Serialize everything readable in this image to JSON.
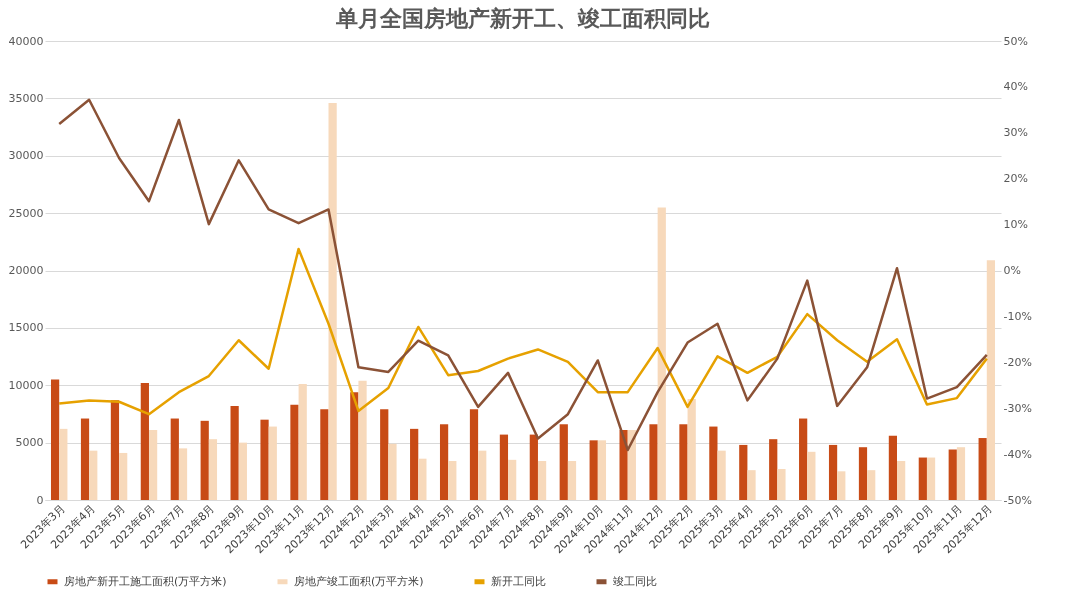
{
  "chart_data": {
    "type": "bar",
    "title": "单月全国房地产新开工、竣工面积同比",
    "categories": [
      "2023年3月",
      "2023年4月",
      "2023年5月",
      "2023年6月",
      "2023年7月",
      "2023年8月",
      "2023年9月",
      "2023年10月",
      "2023年11月",
      "2023年12月",
      "2024年2月",
      "2024年3月",
      "2024年4月",
      "2024年5月",
      "2024年6月",
      "2024年7月",
      "2024年8月",
      "2024年9月",
      "2024年10月",
      "2024年11月",
      "2024年12月",
      "2025年2月",
      "2025年3月",
      "2025年4月",
      "2025年5月",
      "2025年6月",
      "2025年7月",
      "2025年8月",
      "2025年9月",
      "2025年10月",
      "2025年11月",
      "2025年12月"
    ],
    "series": [
      {
        "name": "房地产新开工施工面积(万平方米)",
        "color": "#c84b16",
        "values": [
          10500,
          7100,
          8700,
          10200,
          7100,
          6900,
          8200,
          7000,
          8300,
          7900,
          9400,
          7900,
          6200,
          6600,
          7900,
          5700,
          5700,
          6600,
          5200,
          6100,
          6600,
          6600,
          6400,
          4800,
          5300,
          7100,
          4800,
          4600,
          5600,
          3700,
          4400,
          5400
        ]
      },
      {
        "name": "房地产竣工面积(万平方米)",
        "color": "#f7d9bb",
        "values": [
          6200,
          4300,
          4100,
          6100,
          4500,
          5300,
          5000,
          6400,
          10100,
          34600,
          10400,
          4900,
          3600,
          3400,
          4300,
          3500,
          3400,
          3400,
          5200,
          6100,
          25500,
          8800,
          4300,
          2600,
          2700,
          4200,
          2500,
          2600,
          3400,
          3700,
          4600,
          20900
        ]
      },
      {
        "name": "新开工同比",
        "type": "line",
        "axis": "y2",
        "color": "#e6a100",
        "values": [
          -29,
          -28.3,
          -28.6,
          -31.3,
          -26.5,
          -23,
          -15.2,
          -21.4,
          4.7,
          -11.6,
          -30.6,
          -25.6,
          -12.3,
          -22.8,
          -21.9,
          -19.2,
          -17.2,
          -19.9,
          -26.5,
          -26.5,
          -16.9,
          -29.7,
          -18.7,
          -22.3,
          -18.8,
          -9.5,
          -15.2,
          -19.9,
          -15,
          -29.2,
          -27.8,
          -19.2
        ]
      },
      {
        "name": "竣工同比",
        "type": "line",
        "axis": "y2",
        "color": "#8b5236",
        "values": [
          31.9,
          37.2,
          24.5,
          15.1,
          32.8,
          10.1,
          24,
          13.3,
          10.3,
          13.3,
          -21.1,
          -22.1,
          -15.3,
          -18.5,
          -29.7,
          -22.3,
          -36.6,
          -31.3,
          -19.6,
          -39.1,
          -26.5,
          -15.7,
          -11.6,
          -28.3,
          -19.2,
          -2.2,
          -29.5,
          -21.1,
          0.5,
          -27.9,
          -25.4,
          -18.4
        ]
      }
    ],
    "ylim": [
      0,
      40000
    ],
    "yticks": [
      0,
      5000,
      10000,
      15000,
      20000,
      25000,
      30000,
      35000,
      40000
    ],
    "y2lim": [
      -50,
      50
    ],
    "y2ticks": [
      {
        "value": -50,
        "label": "-50%"
      },
      {
        "value": -40,
        "label": "-40%"
      },
      {
        "value": -30,
        "label": "-30%"
      },
      {
        "value": -20,
        "label": "-20%"
      },
      {
        "value": -10,
        "label": "-10%"
      },
      {
        "value": 0,
        "label": "0%"
      },
      {
        "value": 10,
        "label": "10%"
      },
      {
        "value": 20,
        "label": "20%"
      },
      {
        "value": 30,
        "label": "30%"
      },
      {
        "value": 40,
        "label": "40%"
      },
      {
        "value": 50,
        "label": "50%"
      }
    ],
    "grid": "y",
    "legend": "bottom"
  }
}
